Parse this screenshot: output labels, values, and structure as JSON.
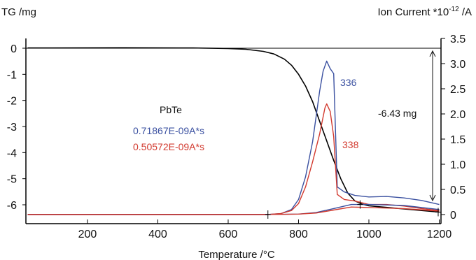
{
  "chart_data": {
    "type": "line",
    "xlabel": "Temperature /°C",
    "xlim": [
      25,
      1205
    ],
    "x_ticks": [
      200,
      400,
      600,
      800,
      1000,
      1200
    ],
    "left_axis": {
      "title": "TG /mg",
      "ylim": [
        -6.4,
        0.1
      ],
      "ticks": [
        0,
        -1,
        -2,
        -3,
        -4,
        -5,
        -6
      ]
    },
    "right_axis": {
      "title_main": "Ion Current *10",
      "title_exp": "-12",
      "title_unit": " /A",
      "ylim": [
        -0.05,
        3.5
      ],
      "ticks": [
        0,
        0.5,
        1.0,
        1.5,
        2.0,
        2.5,
        3.0,
        3.5
      ],
      "tick_labels": [
        "0",
        "0.5",
        "1.0",
        "1.5",
        "2.0",
        "2.5",
        "3.0",
        "3.5"
      ]
    },
    "series": [
      {
        "axis": "left",
        "color": "#000000",
        "points": [
          [
            30,
            0.01
          ],
          [
            100,
            0.01
          ],
          [
            300,
            0.02
          ],
          [
            500,
            0.01
          ],
          [
            600,
            -0.01
          ],
          [
            650,
            -0.04
          ],
          [
            700,
            -0.12
          ],
          [
            730,
            -0.22
          ],
          [
            760,
            -0.42
          ],
          [
            780,
            -0.65
          ],
          [
            800,
            -1.0
          ],
          [
            820,
            -1.45
          ],
          [
            840,
            -2.05
          ],
          [
            860,
            -2.8
          ],
          [
            880,
            -3.55
          ],
          [
            900,
            -4.3
          ],
          [
            920,
            -5.0
          ],
          [
            940,
            -5.55
          ],
          [
            960,
            -5.85
          ],
          [
            980,
            -5.97
          ],
          [
            1000,
            -6.04
          ],
          [
            1050,
            -6.1
          ],
          [
            1100,
            -6.16
          ],
          [
            1150,
            -6.22
          ],
          [
            1200,
            -6.28
          ]
        ]
      },
      {
        "axis": "right",
        "color": "#3a50a0",
        "points": [
          [
            30,
            0.0
          ],
          [
            400,
            0.0
          ],
          [
            710,
            0.0
          ],
          [
            750,
            0.02
          ],
          [
            780,
            0.1
          ],
          [
            800,
            0.3
          ],
          [
            820,
            0.75
          ],
          [
            840,
            1.45
          ],
          [
            860,
            2.45
          ],
          [
            870,
            2.85
          ],
          [
            880,
            3.05
          ],
          [
            890,
            2.9
          ],
          [
            900,
            2.8
          ],
          [
            910,
            0.55
          ],
          [
            930,
            0.45
          ],
          [
            960,
            0.38
          ],
          [
            1000,
            0.35
          ],
          [
            1050,
            0.36
          ],
          [
            1100,
            0.33
          ],
          [
            1150,
            0.28
          ],
          [
            1200,
            0.2
          ]
        ]
      },
      {
        "axis": "right",
        "color": "#d23a2f",
        "points": [
          [
            30,
            0.0
          ],
          [
            400,
            0.0
          ],
          [
            710,
            0.0
          ],
          [
            750,
            0.02
          ],
          [
            780,
            0.08
          ],
          [
            800,
            0.22
          ],
          [
            820,
            0.55
          ],
          [
            840,
            1.05
          ],
          [
            860,
            1.6
          ],
          [
            875,
            2.12
          ],
          [
            880,
            2.2
          ],
          [
            890,
            2.05
          ],
          [
            900,
            1.55
          ],
          [
            910,
            0.4
          ],
          [
            930,
            0.3
          ],
          [
            960,
            0.27
          ],
          [
            1000,
            0.2
          ],
          [
            1050,
            0.2
          ],
          [
            1100,
            0.17
          ],
          [
            1150,
            0.12
          ],
          [
            1200,
            0.08
          ]
        ]
      },
      {
        "axis": "right",
        "color": "#3a50a0",
        "points": [
          [
            30,
            0.0
          ],
          [
            400,
            0.0
          ],
          [
            700,
            0.0
          ],
          [
            800,
            0.01
          ],
          [
            850,
            0.04
          ],
          [
            900,
            0.12
          ],
          [
            950,
            0.2
          ],
          [
            1000,
            0.2
          ],
          [
            1100,
            0.18
          ],
          [
            1200,
            0.1
          ]
        ]
      },
      {
        "axis": "right",
        "color": "#d23a2f",
        "points": [
          [
            30,
            0.0
          ],
          [
            400,
            0.0
          ],
          [
            700,
            0.0
          ],
          [
            800,
            0.01
          ],
          [
            850,
            0.03
          ],
          [
            900,
            0.09
          ],
          [
            950,
            0.15
          ],
          [
            1000,
            0.14
          ],
          [
            1100,
            0.12
          ],
          [
            1200,
            0.07
          ]
        ]
      }
    ],
    "annotations": {
      "sample": "PbTe",
      "blue_area": "0.71867E-09A*s",
      "red_area": "0.50572E-09A*s",
      "blue_peak": "336",
      "red_peak": "338",
      "mass_loss": "-6.43 mg"
    },
    "markers_x": [
      713,
      975,
      1197
    ],
    "colors": {
      "blue": "#3a50a0",
      "red": "#d23a2f",
      "tg": "#000000"
    }
  }
}
